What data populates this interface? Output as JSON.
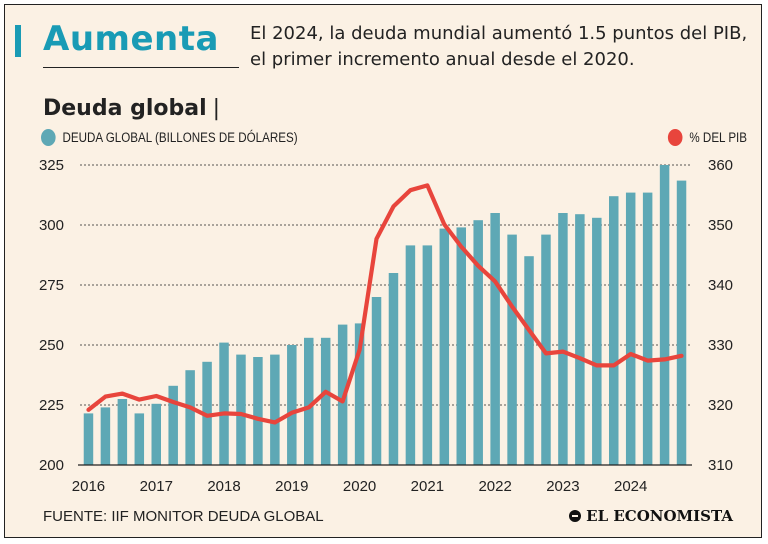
{
  "header": {
    "headline": "Aumenta",
    "intro": "El 2024, la deuda mundial aumentó 1.5 puntos del PIB, el primer incremento anual desde el 2020."
  },
  "chart_title": {
    "text": "Deuda global",
    "mark": "|"
  },
  "legend": {
    "bars_label": "DEUDA GLOBAL (BILLONES DE DÓLARES)",
    "line_label": "% DEL PIB"
  },
  "colors": {
    "bar": "#5ea8b5",
    "line": "#e8453c",
    "accent": "#199bb5",
    "background": "#fbf1e4"
  },
  "chart_data": {
    "type": "bar+line",
    "title": "Deuda global",
    "x_labels": [
      "2016",
      "2017",
      "2018",
      "2019",
      "2020",
      "2021",
      "2022",
      "2023",
      "2024"
    ],
    "y_left": {
      "label": "Deuda global (billones de dólares)",
      "min": 200,
      "max": 325,
      "ticks": [
        200,
        225,
        250,
        275,
        300,
        325
      ]
    },
    "y_right": {
      "label": "% del PIB",
      "min": 310,
      "max": 360,
      "ticks": [
        310,
        320,
        330,
        340,
        350,
        360
      ]
    },
    "series": [
      {
        "name": "Deuda global (billones de dólares)",
        "type": "bar",
        "axis": "left",
        "values": [
          221.5,
          224,
          227.5,
          221.5,
          225.5,
          233,
          239.5,
          243,
          251,
          246,
          245,
          246,
          250,
          253,
          253,
          258.5,
          259,
          270,
          280,
          291.5,
          291.5,
          298.5,
          299,
          302,
          305,
          296,
          287,
          296,
          305,
          304.5,
          303,
          312,
          313.5,
          313.5,
          325,
          318.5
        ]
      },
      {
        "name": "% del PIB",
        "type": "line",
        "axis": "right",
        "values": [
          319.2,
          321.4,
          321.9,
          320.9,
          321.5,
          320.5,
          319.6,
          318.2,
          318.6,
          318.5,
          317.7,
          317.1,
          318.7,
          319.6,
          322.2,
          320.6,
          329.2,
          347.7,
          353.1,
          355.8,
          356.6,
          350.1,
          346.4,
          343.2,
          340.6,
          336.4,
          332.5,
          328.6,
          328.9,
          327.8,
          326.6,
          326.6,
          328.5,
          327.4,
          327.6,
          328.2
        ]
      }
    ],
    "source": "FUENTE: IIF MONITOR DEUDA GLOBAL"
  },
  "footer": {
    "source": "FUENTE: IIF MONITOR DEUDA GLOBAL",
    "logo": "EL ECONOMISTA"
  }
}
